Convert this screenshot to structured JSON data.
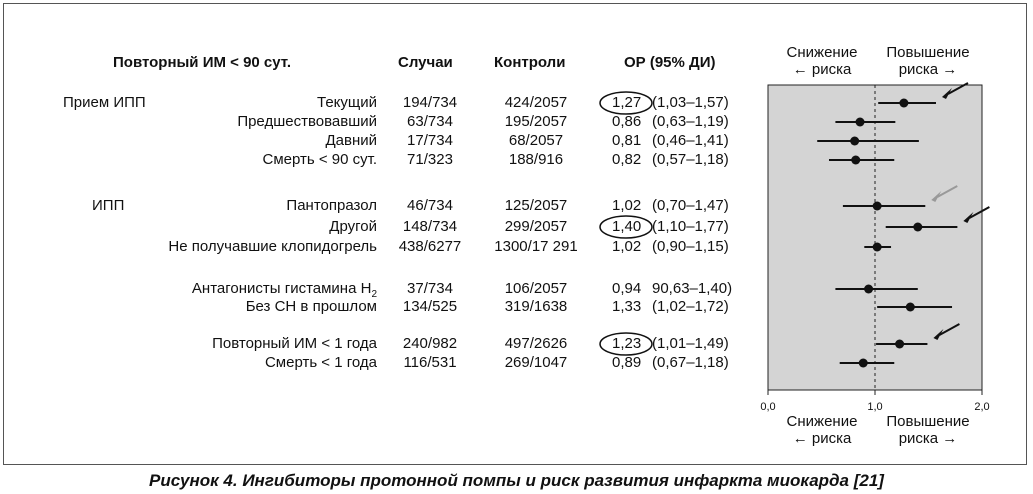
{
  "table": {
    "headers": {
      "group": "Повторный ИМ < 90 сут.",
      "cases": "Случаи",
      "controls": "Контроли",
      "or": "ОР (95% ДИ)"
    },
    "group_labels": [
      "Прием ИПП",
      "ИПП"
    ],
    "rows": [
      {
        "label": "Текущий",
        "cases": "194/734",
        "controls": "424/2057",
        "or_main": "1,27",
        "or_ci": "(1,03–1,57)",
        "circled": true
      },
      {
        "label": "Предшествовавший",
        "cases": "63/734",
        "controls": "195/2057",
        "or_main": "0,86",
        "or_ci": "(0,63–1,19)",
        "circled": false
      },
      {
        "label": "Давний",
        "cases": "17/734",
        "controls": "68/2057",
        "or_main": "0,81",
        "or_ci": "(0,46–1,41)",
        "circled": false
      },
      {
        "label": "Смерть < 90 сут.",
        "cases": "71/323",
        "controls": "188/916",
        "or_main": "0,82",
        "or_ci": "(0,57–1,18)",
        "circled": false
      },
      {
        "label": "Пантопразол",
        "cases": "46/734",
        "controls": "125/2057",
        "or_main": "1,02",
        "or_ci": "(0,70–1,47)",
        "circled": false
      },
      {
        "label": "Другой",
        "cases": "148/734",
        "controls": "299/2057",
        "or_main": "1,40",
        "or_ci": "(1,10–1,77)",
        "circled": true
      },
      {
        "label": "Не получавшие клопидогрель",
        "cases": "438/6277",
        "controls": "1300/17 291",
        "or_main": "1,02",
        "or_ci": "(0,90–1,15)",
        "circled": false
      },
      {
        "label": "Антагонисты гистамина H",
        "label_sub": "2",
        "cases": "37/734",
        "controls": "106/2057",
        "or_main": "0,94",
        "or_ci": "90,63–1,40)",
        "circled": false
      },
      {
        "label": "Без СН в прошлом",
        "cases": "134/525",
        "controls": "319/1638",
        "or_main": "1,33",
        "or_ci": "(1,02–1,72)",
        "circled": false
      },
      {
        "label": "Повторный ИМ < 1 года",
        "cases": "240/982",
        "controls": "497/2626",
        "or_main": "1,23",
        "or_ci": "(1,01–1,49)",
        "circled": true
      },
      {
        "label": "Смерть < 1 года",
        "cases": "116/531",
        "controls": "269/1047",
        "or_main": "0,89",
        "or_ci": "(0,67–1,18)",
        "circled": false
      }
    ]
  },
  "plot": {
    "top_left_label": [
      "Снижение",
      "← риска"
    ],
    "top_right_label": [
      "Повышение",
      "риска →"
    ],
    "bottom_left_label": [
      "Снижение",
      "← риска"
    ],
    "bottom_right_label": [
      "Повышение",
      "риска →"
    ],
    "background_color": "#d4d4d4",
    "arrow_color": "#111111",
    "gray_arrow_color": "#999999"
  },
  "chart_data": {
    "type": "forest",
    "xlim": [
      0.0,
      2.0
    ],
    "x_ticks": [
      "0,0",
      "1,0",
      "2,0"
    ],
    "reference_line": 1.0,
    "grid": false,
    "points": [
      {
        "or": 1.27,
        "lo": 1.03,
        "hi": 1.57,
        "arrow": "black"
      },
      {
        "or": 0.86,
        "lo": 0.63,
        "hi": 1.19,
        "arrow": null
      },
      {
        "or": 0.81,
        "lo": 0.46,
        "hi": 1.41,
        "arrow": null
      },
      {
        "or": 0.82,
        "lo": 0.57,
        "hi": 1.18,
        "arrow": null
      },
      {
        "or": 1.02,
        "lo": 0.7,
        "hi": 1.47,
        "arrow": "gray"
      },
      {
        "or": 1.4,
        "lo": 1.1,
        "hi": 1.77,
        "arrow": "black"
      },
      {
        "or": 1.02,
        "lo": 0.9,
        "hi": 1.15,
        "arrow": null
      },
      {
        "or": 0.94,
        "lo": 0.63,
        "hi": 1.4,
        "arrow": null
      },
      {
        "or": 1.33,
        "lo": 1.02,
        "hi": 1.72,
        "arrow": null
      },
      {
        "or": 1.23,
        "lo": 1.01,
        "hi": 1.49,
        "arrow": "black"
      },
      {
        "or": 0.89,
        "lo": 0.67,
        "hi": 1.18,
        "arrow": null
      }
    ]
  },
  "caption": "Рисунок 4. Ингибиторы протонной помпы и риск развития инфаркта миокарда [21]"
}
